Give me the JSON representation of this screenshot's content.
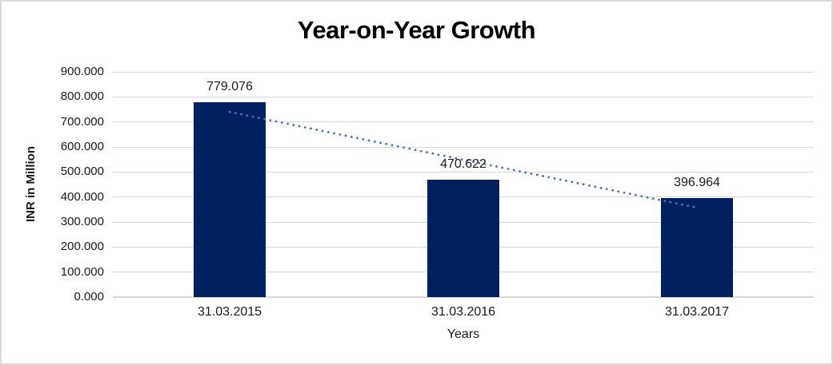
{
  "title": "Year-on-Year Growth",
  "chart_data": {
    "type": "bar",
    "title": "Year-on-Year Growth",
    "xlabel": "Years",
    "ylabel": "INR in Million",
    "categories": [
      "31.03.2015",
      "31.03.2016",
      "31.03.2017"
    ],
    "values": [
      779.076,
      470.622,
      396.964
    ],
    "value_labels": [
      "779.076",
      "470.622",
      "396.964"
    ],
    "ylim": [
      0,
      900
    ],
    "yticks": [
      0,
      100,
      200,
      300,
      400,
      500,
      600,
      700,
      800,
      900
    ],
    "ytick_labels": [
      "0.000",
      "100.000",
      "200.000",
      "300.000",
      "400.000",
      "500.000",
      "600.000",
      "700.000",
      "800.000",
      "900.000"
    ],
    "grid": true,
    "legend": "none",
    "trendline": {
      "type": "linear",
      "style": "dotted",
      "start_value": 739.9,
      "end_value": 357.8
    }
  },
  "colors": {
    "bar": "#002060",
    "trendline": "#4472C4",
    "gridline": "#D9D9D9",
    "border": "#D9D9D9",
    "axis_text": "#1a1a1a",
    "title_text": "#000000"
  }
}
